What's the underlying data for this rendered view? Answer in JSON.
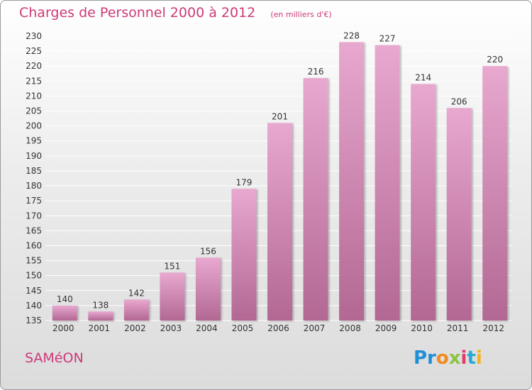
{
  "header": {
    "title": "Charges de Personnel 2000 à 2012",
    "unit": "(en milliers d'€)"
  },
  "footer": {
    "commune": "SAMéON",
    "logo": [
      "Pr",
      "o",
      "x",
      "i",
      "t",
      "i"
    ]
  },
  "colors": {
    "bar_top": "#e8a8cf",
    "bar_bottom": "#b26893",
    "title": "#cc3a78"
  },
  "chart_data": {
    "type": "bar",
    "title": "Charges de Personnel 2000 à 2012",
    "subtitle": "(en milliers d'€)",
    "categories": [
      "2000",
      "2001",
      "2002",
      "2003",
      "2004",
      "2005",
      "2006",
      "2007",
      "2008",
      "2009",
      "2010",
      "2011",
      "2012"
    ],
    "values": [
      140,
      138,
      142,
      151,
      156,
      179,
      201,
      216,
      228,
      227,
      214,
      206,
      220
    ],
    "value_labels": [
      "140",
      "138",
      "142",
      "151",
      "156",
      "179",
      "201",
      "216",
      "228",
      "227",
      "214",
      "206",
      "220"
    ],
    "ylim": [
      135,
      230
    ],
    "yticks": [
      135,
      140,
      145,
      150,
      155,
      160,
      165,
      170,
      175,
      180,
      185,
      190,
      195,
      200,
      205,
      210,
      215,
      220,
      225,
      230
    ],
    "ytick_labels": [
      "135",
      "140",
      "145",
      "150",
      "155",
      "160",
      "165",
      "170",
      "175",
      "180",
      "185",
      "190",
      "195",
      "200",
      "205",
      "210",
      "215",
      "220",
      "225",
      "230"
    ],
    "grid": true
  }
}
